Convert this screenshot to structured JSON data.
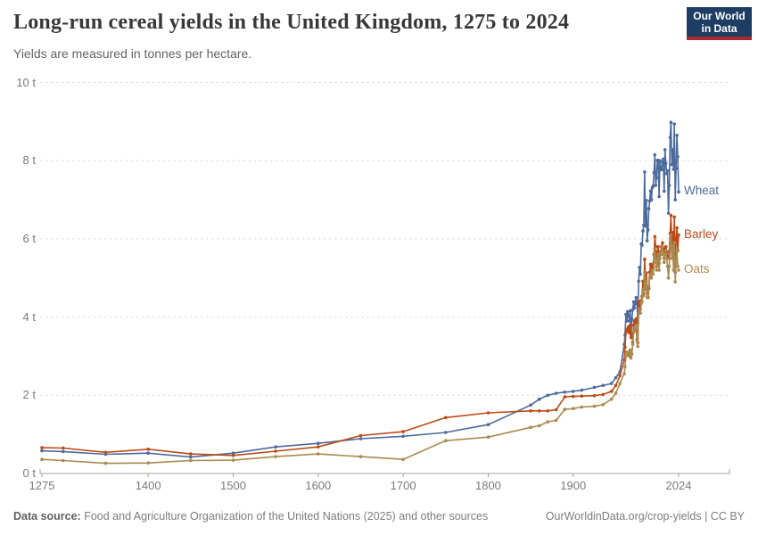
{
  "header": {
    "title": "Long-run cereal yields in the United Kingdom, 1275 to 2024",
    "subtitle": "Yields are measured in tonnes per hectare."
  },
  "logo": {
    "line1": "Our World",
    "line2": "in Data",
    "bg_color": "#1d3d63",
    "bar_color": "#a82931"
  },
  "footer": {
    "source_bold": "Data source:",
    "source_rest": " Food and Agriculture Organization of the United Nations (2025) and other sources",
    "credit": "OurWorldinData.org/crop-yields | CC BY"
  },
  "colors": {
    "grid": "#dcdcdc",
    "axis": "#a1a1a1",
    "tick_label": "#7a7a7a",
    "title": "#383838",
    "subtitle": "#636363"
  },
  "chart_data": {
    "type": "line",
    "title": "Long-run cereal yields in the United Kingdom, 1275 to 2024",
    "ylabel": "tonnes per hectare",
    "y_unit_suffix": " t",
    "x_ticks": [
      1275,
      1400,
      1500,
      1600,
      1700,
      1800,
      1900,
      2024
    ],
    "y_ticks": [
      0,
      2,
      4,
      6,
      8,
      10
    ],
    "xlim": [
      1275,
      2024
    ],
    "ylim": [
      0,
      10
    ],
    "grid": "dashed-horizontal",
    "legend_position": "right-end-of-line",
    "series": [
      {
        "name": "Wheat",
        "color": "#4C6A9C",
        "points": [
          [
            1275,
            0.58
          ],
          [
            1300,
            0.56
          ],
          [
            1350,
            0.49
          ],
          [
            1400,
            0.52
          ],
          [
            1450,
            0.42
          ],
          [
            1500,
            0.52
          ],
          [
            1550,
            0.68
          ],
          [
            1600,
            0.77
          ],
          [
            1650,
            0.89
          ],
          [
            1700,
            0.95
          ],
          [
            1750,
            1.05
          ],
          [
            1800,
            1.25
          ],
          [
            1850,
            1.75
          ],
          [
            1860,
            1.9
          ],
          [
            1870,
            2.0
          ],
          [
            1880,
            2.05
          ],
          [
            1890,
            2.08
          ],
          [
            1900,
            2.1
          ],
          [
            1910,
            2.13
          ],
          [
            1925,
            2.2
          ],
          [
            1935,
            2.25
          ],
          [
            1945,
            2.3
          ],
          [
            1950,
            2.45
          ],
          [
            1955,
            2.6
          ],
          [
            1960,
            3.3
          ],
          [
            1961,
            3.54
          ],
          [
            1962,
            4.07
          ],
          [
            1963,
            3.9
          ],
          [
            1964,
            4.14
          ],
          [
            1965,
            4.04
          ],
          [
            1966,
            3.9
          ],
          [
            1967,
            4.16
          ],
          [
            1968,
            3.55
          ],
          [
            1969,
            3.95
          ],
          [
            1970,
            4.19
          ],
          [
            1971,
            4.39
          ],
          [
            1972,
            4.23
          ],
          [
            1973,
            4.38
          ],
          [
            1974,
            4.5
          ],
          [
            1975,
            4.34
          ],
          [
            1976,
            3.86
          ],
          [
            1977,
            4.92
          ],
          [
            1978,
            5.27
          ],
          [
            1979,
            5.1
          ],
          [
            1980,
            5.87
          ],
          [
            1981,
            5.84
          ],
          [
            1982,
            6.2
          ],
          [
            1983,
            6.35
          ],
          [
            1984,
            7.71
          ],
          [
            1985,
            6.33
          ],
          [
            1986,
            6.98
          ],
          [
            1987,
            5.95
          ],
          [
            1988,
            6.23
          ],
          [
            1989,
            6.77
          ],
          [
            1990,
            6.97
          ],
          [
            1991,
            7.23
          ],
          [
            1992,
            7.0
          ],
          [
            1993,
            7.31
          ],
          [
            1994,
            7.35
          ],
          [
            1995,
            7.7
          ],
          [
            1996,
            8.15
          ],
          [
            1997,
            7.37
          ],
          [
            1998,
            7.56
          ],
          [
            1999,
            8.01
          ],
          [
            2000,
            8.01
          ],
          [
            2001,
            7.08
          ],
          [
            2002,
            8.0
          ],
          [
            2003,
            7.78
          ],
          [
            2004,
            7.77
          ],
          [
            2005,
            7.96
          ],
          [
            2006,
            8.04
          ],
          [
            2007,
            7.22
          ],
          [
            2008,
            8.28
          ],
          [
            2009,
            7.93
          ],
          [
            2010,
            7.67
          ],
          [
            2011,
            7.74
          ],
          [
            2012,
            6.66
          ],
          [
            2013,
            7.37
          ],
          [
            2014,
            8.59
          ],
          [
            2015,
            8.98
          ],
          [
            2016,
            7.9
          ],
          [
            2017,
            8.28
          ],
          [
            2018,
            7.78
          ],
          [
            2019,
            8.94
          ],
          [
            2020,
            7.0
          ],
          [
            2021,
            7.8
          ],
          [
            2022,
            8.65
          ],
          [
            2023,
            8.1
          ],
          [
            2024,
            7.2
          ]
        ]
      },
      {
        "name": "Barley",
        "color": "#BC4A16",
        "points": [
          [
            1275,
            0.66
          ],
          [
            1300,
            0.65
          ],
          [
            1350,
            0.54
          ],
          [
            1400,
            0.62
          ],
          [
            1450,
            0.5
          ],
          [
            1500,
            0.46
          ],
          [
            1550,
            0.57
          ],
          [
            1600,
            0.68
          ],
          [
            1650,
            0.97
          ],
          [
            1700,
            1.07
          ],
          [
            1750,
            1.43
          ],
          [
            1800,
            1.55
          ],
          [
            1850,
            1.6
          ],
          [
            1860,
            1.6
          ],
          [
            1870,
            1.6
          ],
          [
            1880,
            1.63
          ],
          [
            1890,
            1.96
          ],
          [
            1900,
            1.97
          ],
          [
            1910,
            1.98
          ],
          [
            1925,
            1.99
          ],
          [
            1935,
            2.02
          ],
          [
            1945,
            2.1
          ],
          [
            1950,
            2.25
          ],
          [
            1955,
            2.5
          ],
          [
            1960,
            2.9
          ],
          [
            1961,
            3.23
          ],
          [
            1962,
            3.61
          ],
          [
            1963,
            3.66
          ],
          [
            1964,
            3.7
          ],
          [
            1965,
            3.75
          ],
          [
            1966,
            3.6
          ],
          [
            1967,
            3.79
          ],
          [
            1968,
            3.48
          ],
          [
            1969,
            3.6
          ],
          [
            1970,
            3.36
          ],
          [
            1971,
            3.79
          ],
          [
            1972,
            3.9
          ],
          [
            1973,
            3.85
          ],
          [
            1974,
            3.95
          ],
          [
            1975,
            3.43
          ],
          [
            1976,
            3.34
          ],
          [
            1977,
            4.4
          ],
          [
            1978,
            4.37
          ],
          [
            1979,
            4.2
          ],
          [
            1980,
            4.42
          ],
          [
            1981,
            4.53
          ],
          [
            1982,
            4.92
          ],
          [
            1983,
            4.6
          ],
          [
            1984,
            5.48
          ],
          [
            1985,
            4.96
          ],
          [
            1986,
            5.13
          ],
          [
            1987,
            4.61
          ],
          [
            1988,
            4.5
          ],
          [
            1989,
            4.73
          ],
          [
            1990,
            5.15
          ],
          [
            1991,
            5.35
          ],
          [
            1992,
            5.2
          ],
          [
            1993,
            5.35
          ],
          [
            1994,
            5.25
          ],
          [
            1995,
            5.6
          ],
          [
            1996,
            6.06
          ],
          [
            1997,
            5.8
          ],
          [
            1998,
            5.3
          ],
          [
            1999,
            5.66
          ],
          [
            2000,
            5.8
          ],
          [
            2001,
            5.37
          ],
          [
            2002,
            5.6
          ],
          [
            2003,
            5.69
          ],
          [
            2004,
            5.8
          ],
          [
            2005,
            5.9
          ],
          [
            2006,
            5.7
          ],
          [
            2007,
            5.5
          ],
          [
            2008,
            5.75
          ],
          [
            2009,
            5.8
          ],
          [
            2010,
            5.67
          ],
          [
            2011,
            5.5
          ],
          [
            2012,
            5.52
          ],
          [
            2013,
            5.68
          ],
          [
            2014,
            6.14
          ],
          [
            2015,
            6.6
          ],
          [
            2016,
            5.9
          ],
          [
            2017,
            6.16
          ],
          [
            2018,
            5.61
          ],
          [
            2019,
            6.56
          ],
          [
            2020,
            5.15
          ],
          [
            2021,
            6.0
          ],
          [
            2022,
            6.28
          ],
          [
            2023,
            5.7
          ],
          [
            2024,
            6.1
          ]
        ]
      },
      {
        "name": "Oats",
        "color": "#A9894E",
        "points": [
          [
            1275,
            0.36
          ],
          [
            1300,
            0.33
          ],
          [
            1350,
            0.26
          ],
          [
            1400,
            0.27
          ],
          [
            1450,
            0.33
          ],
          [
            1500,
            0.34
          ],
          [
            1550,
            0.43
          ],
          [
            1600,
            0.5
          ],
          [
            1650,
            0.43
          ],
          [
            1700,
            0.36
          ],
          [
            1750,
            0.84
          ],
          [
            1800,
            0.93
          ],
          [
            1850,
            1.18
          ],
          [
            1860,
            1.22
          ],
          [
            1870,
            1.32
          ],
          [
            1880,
            1.36
          ],
          [
            1890,
            1.64
          ],
          [
            1900,
            1.66
          ],
          [
            1910,
            1.7
          ],
          [
            1925,
            1.72
          ],
          [
            1935,
            1.76
          ],
          [
            1945,
            1.9
          ],
          [
            1950,
            2.05
          ],
          [
            1955,
            2.3
          ],
          [
            1960,
            2.55
          ],
          [
            1961,
            2.73
          ],
          [
            1962,
            3.0
          ],
          [
            1963,
            3.1
          ],
          [
            1964,
            3.05
          ],
          [
            1965,
            3.1
          ],
          [
            1966,
            3.0
          ],
          [
            1967,
            3.16
          ],
          [
            1968,
            2.95
          ],
          [
            1969,
            3.05
          ],
          [
            1970,
            3.3
          ],
          [
            1971,
            3.6
          ],
          [
            1972,
            3.65
          ],
          [
            1973,
            3.7
          ],
          [
            1974,
            3.8
          ],
          [
            1975,
            3.4
          ],
          [
            1976,
            3.25
          ],
          [
            1977,
            4.1
          ],
          [
            1978,
            4.2
          ],
          [
            1979,
            4.1
          ],
          [
            1980,
            4.35
          ],
          [
            1981,
            4.4
          ],
          [
            1982,
            4.7
          ],
          [
            1983,
            4.55
          ],
          [
            1984,
            5.15
          ],
          [
            1985,
            4.7
          ],
          [
            1986,
            4.9
          ],
          [
            1987,
            4.5
          ],
          [
            1988,
            4.6
          ],
          [
            1989,
            4.8
          ],
          [
            1990,
            5.0
          ],
          [
            1991,
            5.1
          ],
          [
            1992,
            5.0
          ],
          [
            1993,
            5.2
          ],
          [
            1994,
            5.1
          ],
          [
            1995,
            5.4
          ],
          [
            1996,
            5.75
          ],
          [
            1997,
            5.5
          ],
          [
            1998,
            5.2
          ],
          [
            1999,
            5.45
          ],
          [
            2000,
            5.6
          ],
          [
            2001,
            5.2
          ],
          [
            2002,
            5.5
          ],
          [
            2003,
            5.6
          ],
          [
            2004,
            5.7
          ],
          [
            2005,
            5.8
          ],
          [
            2006,
            5.6
          ],
          [
            2007,
            5.4
          ],
          [
            2008,
            5.6
          ],
          [
            2009,
            5.7
          ],
          [
            2010,
            5.5
          ],
          [
            2011,
            5.3
          ],
          [
            2012,
            5.0
          ],
          [
            2013,
            5.3
          ],
          [
            2014,
            5.8
          ],
          [
            2015,
            6.1
          ],
          [
            2016,
            5.5
          ],
          [
            2017,
            5.8
          ],
          [
            2018,
            5.2
          ],
          [
            2019,
            5.9
          ],
          [
            2020,
            4.9
          ],
          [
            2021,
            5.4
          ],
          [
            2022,
            5.7
          ],
          [
            2023,
            5.3
          ],
          [
            2024,
            5.2
          ]
        ]
      }
    ]
  }
}
